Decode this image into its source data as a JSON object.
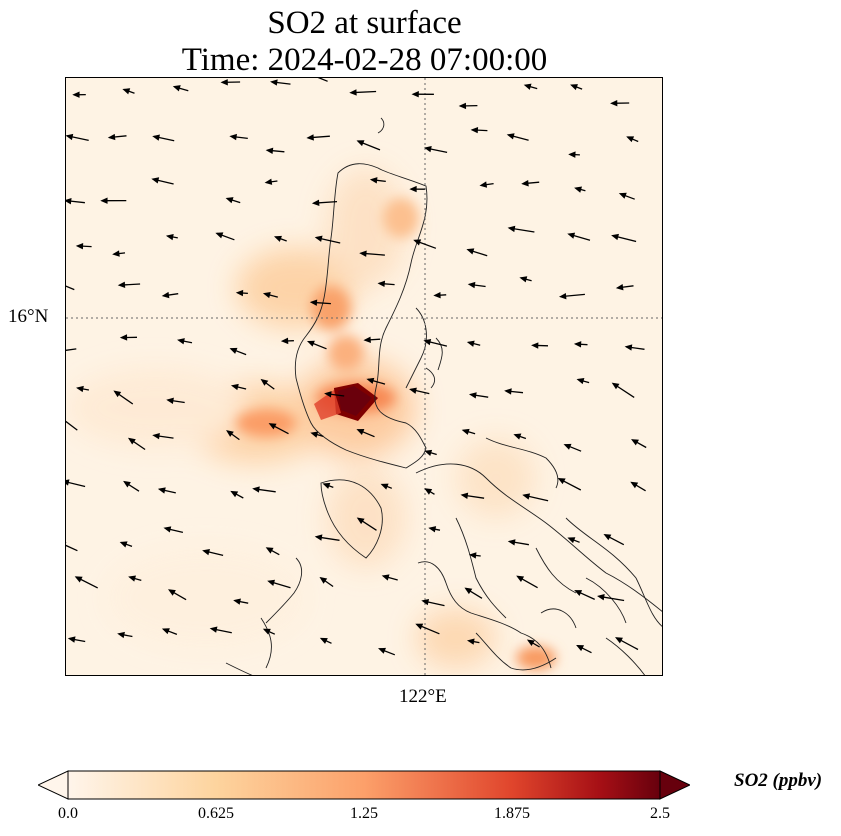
{
  "title": {
    "line1": "SO2 at surface",
    "line2": "Time: 2024-02-28 07:00:00"
  },
  "map": {
    "lat_gridline_label": "16°N",
    "lon_gridline_label": "122°E"
  },
  "colorbar": {
    "label": "SO2 (ppbv)",
    "ticks": [
      "0.0",
      "0.625",
      "1.25",
      "1.875",
      "2.5"
    ],
    "colormap": [
      "#fff5eb",
      "#fdd49e",
      "#fdae6b",
      "#f16913",
      "#a50f15",
      "#67000d"
    ],
    "extend": "both"
  },
  "colors": {
    "background": "#fef3e4",
    "coastline": "#222222",
    "vector": "#000000",
    "gridline": "#666666"
  }
}
